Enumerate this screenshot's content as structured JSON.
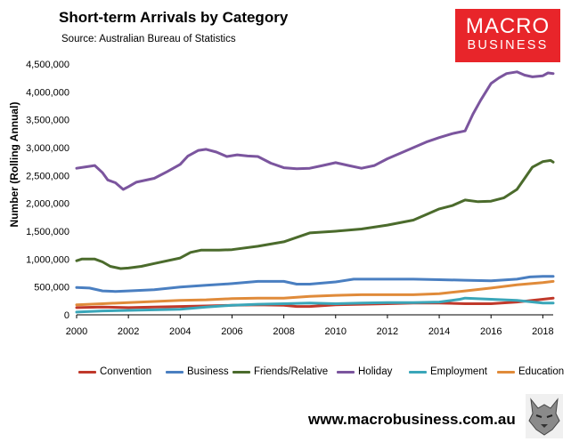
{
  "header": {
    "title": "Short-term Arrivals by Category",
    "source": "Source: Australian Bureau of Statistics"
  },
  "logo": {
    "line1": "MACRO",
    "line2": "BUSINESS",
    "color": "#e8252a"
  },
  "footer": {
    "url": "www.macrobusiness.com.au",
    "mascot_icon": "wolf-mascot-icon"
  },
  "chart_data": {
    "type": "line",
    "title": "Short-term Arrivals by Category",
    "xlabel": "",
    "ylabel": "Number (Rolling Annual)",
    "xlim": [
      2000,
      2018.4
    ],
    "ylim": [
      0,
      4500000
    ],
    "grid": false,
    "legend_position": "bottom",
    "x_ticks": [
      2000,
      2002,
      2004,
      2006,
      2008,
      2010,
      2012,
      2014,
      2016,
      2018
    ],
    "y_ticks": [
      0,
      500000,
      1000000,
      1500000,
      2000000,
      2500000,
      3000000,
      3500000,
      4000000,
      4500000
    ],
    "y_tick_labels": [
      "0",
      "500,000",
      "1,000,000",
      "1,500,000",
      "2,000,000",
      "2,500,000",
      "3,000,000",
      "3,500,000",
      "4,000,000",
      "4,500,000"
    ],
    "series": [
      {
        "name": "Convention",
        "color": "#c0392b",
        "points": [
          [
            2000,
            130000
          ],
          [
            2001,
            140000
          ],
          [
            2002,
            130000
          ],
          [
            2003,
            140000
          ],
          [
            2004,
            150000
          ],
          [
            2005,
            160000
          ],
          [
            2006,
            170000
          ],
          [
            2007,
            180000
          ],
          [
            2008,
            170000
          ],
          [
            2008.5,
            150000
          ],
          [
            2009,
            150000
          ],
          [
            2010,
            180000
          ],
          [
            2011,
            190000
          ],
          [
            2012,
            200000
          ],
          [
            2013,
            210000
          ],
          [
            2014,
            210000
          ],
          [
            2015,
            200000
          ],
          [
            2016,
            200000
          ],
          [
            2017,
            230000
          ],
          [
            2018,
            280000
          ],
          [
            2018.4,
            300000
          ]
        ]
      },
      {
        "name": "Business",
        "color": "#4a7fc1",
        "points": [
          [
            2000,
            490000
          ],
          [
            2000.5,
            480000
          ],
          [
            2001,
            430000
          ],
          [
            2001.5,
            420000
          ],
          [
            2002,
            430000
          ],
          [
            2003,
            450000
          ],
          [
            2004,
            500000
          ],
          [
            2005,
            530000
          ],
          [
            2006,
            560000
          ],
          [
            2007,
            600000
          ],
          [
            2008,
            600000
          ],
          [
            2008.5,
            550000
          ],
          [
            2009,
            550000
          ],
          [
            2010,
            590000
          ],
          [
            2010.7,
            640000
          ],
          [
            2011,
            640000
          ],
          [
            2012,
            640000
          ],
          [
            2013,
            640000
          ],
          [
            2014,
            630000
          ],
          [
            2015,
            620000
          ],
          [
            2016,
            610000
          ],
          [
            2017,
            640000
          ],
          [
            2017.5,
            680000
          ],
          [
            2018,
            690000
          ],
          [
            2018.4,
            690000
          ]
        ]
      },
      {
        "name": "Friends/Relative",
        "color": "#4b6b2c",
        "points": [
          [
            2000,
            970000
          ],
          [
            2000.2,
            1000000
          ],
          [
            2000.7,
            1000000
          ],
          [
            2001,
            950000
          ],
          [
            2001.3,
            870000
          ],
          [
            2001.7,
            830000
          ],
          [
            2002,
            840000
          ],
          [
            2002.5,
            870000
          ],
          [
            2003,
            920000
          ],
          [
            2004,
            1020000
          ],
          [
            2004.4,
            1120000
          ],
          [
            2004.8,
            1160000
          ],
          [
            2005.5,
            1160000
          ],
          [
            2006,
            1170000
          ],
          [
            2007,
            1230000
          ],
          [
            2008,
            1310000
          ],
          [
            2008.5,
            1390000
          ],
          [
            2009,
            1470000
          ],
          [
            2010,
            1500000
          ],
          [
            2011,
            1540000
          ],
          [
            2012,
            1610000
          ],
          [
            2013,
            1700000
          ],
          [
            2013.5,
            1800000
          ],
          [
            2014,
            1900000
          ],
          [
            2014.5,
            1960000
          ],
          [
            2015,
            2060000
          ],
          [
            2015.5,
            2030000
          ],
          [
            2016,
            2040000
          ],
          [
            2016.5,
            2100000
          ],
          [
            2017,
            2250000
          ],
          [
            2017.3,
            2450000
          ],
          [
            2017.6,
            2650000
          ],
          [
            2018,
            2750000
          ],
          [
            2018.3,
            2770000
          ],
          [
            2018.4,
            2740000
          ]
        ]
      },
      {
        "name": "Holiday",
        "color": "#7b559e",
        "points": [
          [
            2000,
            2630000
          ],
          [
            2000.3,
            2650000
          ],
          [
            2000.7,
            2680000
          ],
          [
            2001,
            2550000
          ],
          [
            2001.2,
            2420000
          ],
          [
            2001.5,
            2370000
          ],
          [
            2001.8,
            2250000
          ],
          [
            2002,
            2300000
          ],
          [
            2002.3,
            2380000
          ],
          [
            2003,
            2450000
          ],
          [
            2003.5,
            2570000
          ],
          [
            2004,
            2700000
          ],
          [
            2004.3,
            2850000
          ],
          [
            2004.7,
            2950000
          ],
          [
            2005,
            2970000
          ],
          [
            2005.4,
            2920000
          ],
          [
            2005.8,
            2840000
          ],
          [
            2006.2,
            2870000
          ],
          [
            2006.6,
            2850000
          ],
          [
            2007,
            2840000
          ],
          [
            2007.5,
            2720000
          ],
          [
            2008,
            2640000
          ],
          [
            2008.5,
            2620000
          ],
          [
            2009,
            2630000
          ],
          [
            2009.5,
            2680000
          ],
          [
            2010,
            2730000
          ],
          [
            2010.5,
            2680000
          ],
          [
            2011,
            2630000
          ],
          [
            2011.5,
            2680000
          ],
          [
            2012,
            2800000
          ],
          [
            2012.5,
            2900000
          ],
          [
            2013,
            3000000
          ],
          [
            2013.5,
            3100000
          ],
          [
            2014,
            3180000
          ],
          [
            2014.5,
            3250000
          ],
          [
            2015,
            3300000
          ],
          [
            2015.3,
            3600000
          ],
          [
            2015.6,
            3850000
          ],
          [
            2016,
            4150000
          ],
          [
            2016.3,
            4250000
          ],
          [
            2016.6,
            4330000
          ],
          [
            2017,
            4360000
          ],
          [
            2017.3,
            4300000
          ],
          [
            2017.6,
            4270000
          ],
          [
            2018,
            4290000
          ],
          [
            2018.2,
            4340000
          ],
          [
            2018.4,
            4330000
          ]
        ]
      },
      {
        "name": "Employment",
        "color": "#3aa6b9",
        "points": [
          [
            2000,
            50000
          ],
          [
            2001,
            70000
          ],
          [
            2002,
            80000
          ],
          [
            2003,
            90000
          ],
          [
            2004,
            100000
          ],
          [
            2005,
            140000
          ],
          [
            2006,
            170000
          ],
          [
            2007,
            190000
          ],
          [
            2008,
            200000
          ],
          [
            2009,
            210000
          ],
          [
            2010,
            200000
          ],
          [
            2011,
            210000
          ],
          [
            2012,
            220000
          ],
          [
            2013,
            220000
          ],
          [
            2014,
            230000
          ],
          [
            2014.8,
            280000
          ],
          [
            2015,
            300000
          ],
          [
            2016,
            280000
          ],
          [
            2017,
            260000
          ],
          [
            2018,
            210000
          ],
          [
            2018.4,
            210000
          ]
        ]
      },
      {
        "name": "Education",
        "color": "#e08b3a",
        "points": [
          [
            2000,
            180000
          ],
          [
            2001,
            200000
          ],
          [
            2002,
            220000
          ],
          [
            2003,
            240000
          ],
          [
            2004,
            260000
          ],
          [
            2005,
            270000
          ],
          [
            2006,
            290000
          ],
          [
            2007,
            300000
          ],
          [
            2008,
            300000
          ],
          [
            2009,
            330000
          ],
          [
            2010,
            350000
          ],
          [
            2011,
            360000
          ],
          [
            2012,
            360000
          ],
          [
            2013,
            360000
          ],
          [
            2014,
            380000
          ],
          [
            2015,
            430000
          ],
          [
            2016,
            480000
          ],
          [
            2017,
            540000
          ],
          [
            2018,
            580000
          ],
          [
            2018.4,
            600000
          ]
        ]
      }
    ]
  }
}
